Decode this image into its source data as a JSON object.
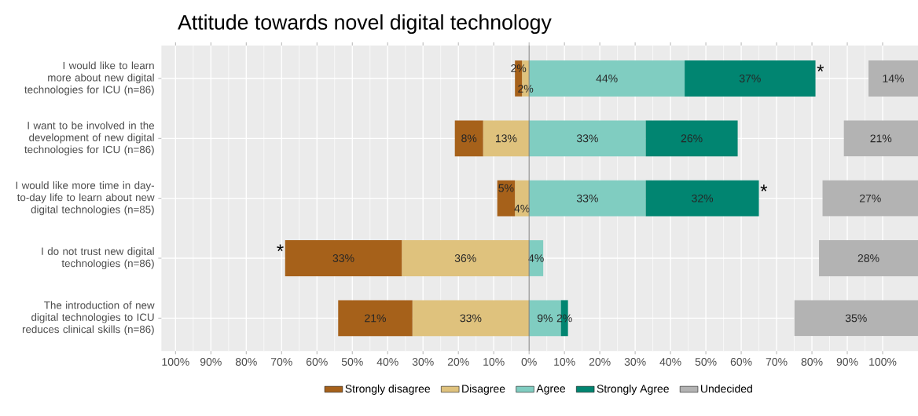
{
  "chart_data": {
    "type": "bar",
    "orientation": "horizontal",
    "title": "Attitude towards novel digital technology",
    "categories": [
      "I would like to learn more about new digital technologies for ICU (n=86)",
      "I want to be involved in the development of new digital technologies for ICU (n=86)",
      "I would like more time in day-to-day life to learn about new digital technologies (n=85)",
      "I do not trust new digital technologies (n=86)",
      "The introduction of new digital technologies to ICU reduces clinical skills (n=86)"
    ],
    "series": [
      {
        "name": "Disagree",
        "color": "#dfc27d",
        "values": [
          2,
          13,
          4,
          36,
          33
        ],
        "base": [
          -2,
          -13,
          -4,
          -36,
          -33
        ],
        "value_labels": [
          "2%",
          "13%",
          "4%",
          "36%",
          "33%"
        ]
      },
      {
        "name": "Strongly disagree",
        "color": "#a6611a",
        "values": [
          2,
          8,
          5,
          33,
          21
        ],
        "base": [
          -4,
          -21,
          -9,
          -69,
          -54
        ],
        "value_labels": [
          "2%",
          "8%",
          "5%",
          "33%",
          "21%"
        ]
      },
      {
        "name": "Agree",
        "color": "#80cdc1",
        "values": [
          44,
          33,
          33,
          4,
          9
        ],
        "base": [
          0,
          0,
          0,
          0,
          0
        ],
        "value_labels": [
          "44%",
          "33%",
          "33%",
          "4%",
          "9%"
        ]
      },
      {
        "name": "Strongly Agree",
        "color": "#018571",
        "values": [
          37,
          26,
          32,
          null,
          2
        ],
        "base": [
          44,
          33,
          33,
          null,
          9
        ],
        "value_labels": [
          "37%",
          "26%",
          "32%",
          null,
          "2%"
        ]
      },
      {
        "name": "Undecided",
        "color": "#b3b3b3",
        "values": [
          14,
          21,
          27,
          28,
          35
        ],
        "base": [
          96,
          89,
          83,
          82,
          75
        ],
        "value_labels": [
          "14%",
          "21%",
          "27%",
          "28%",
          "35%"
        ]
      }
    ],
    "xlim": [
      -104,
      110
    ],
    "xticks": [
      {
        "value": -100,
        "label": "100%"
      },
      {
        "value": -90,
        "label": "90%"
      },
      {
        "value": -80,
        "label": "80%"
      },
      {
        "value": -70,
        "label": "70%"
      },
      {
        "value": -60,
        "label": "60%"
      },
      {
        "value": -50,
        "label": "50%"
      },
      {
        "value": -40,
        "label": "40%"
      },
      {
        "value": -30,
        "label": "30%"
      },
      {
        "value": -20,
        "label": "20%"
      },
      {
        "value": -10,
        "label": "10%"
      },
      {
        "value": 0,
        "label": "0%"
      },
      {
        "value": 10,
        "label": "10%"
      },
      {
        "value": 20,
        "label": "20%"
      },
      {
        "value": 30,
        "label": "30%"
      },
      {
        "value": 40,
        "label": "40%"
      },
      {
        "value": 50,
        "label": "50%"
      },
      {
        "value": 60,
        "label": "60%"
      },
      {
        "value": 70,
        "label": "70%"
      },
      {
        "value": 80,
        "label": "80%"
      },
      {
        "value": 90,
        "label": "90%"
      },
      {
        "value": 100,
        "label": "100%"
      }
    ],
    "ref_lines": [
      {
        "axis": "x",
        "value": 0,
        "color": "#808080"
      }
    ],
    "annotations": [
      {
        "text": "*",
        "x": 81,
        "y": "I would like to learn more about new digital technologies for ICU (n=86)"
      },
      {
        "text": "*",
        "x": 65,
        "y": "I would like more time in day-to-day life to learn about new digital technologies (n=85)"
      },
      {
        "text": "*",
        "x": -69,
        "y": "I do not trust new digital technologies (n=86)"
      }
    ],
    "grid": true,
    "legend": "bottom"
  }
}
